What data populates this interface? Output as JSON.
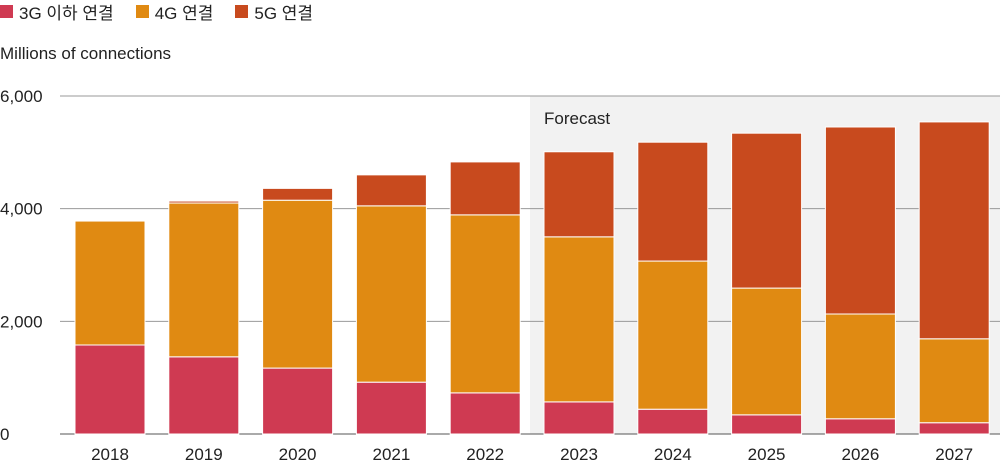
{
  "chart_data": {
    "type": "bar",
    "stacked": true,
    "ylabel": "Millions of connections",
    "ylim": [
      0,
      6000
    ],
    "yticks": [
      0,
      2000,
      4000,
      6000
    ],
    "ytick_labels": [
      "0",
      "2,000",
      "4,000",
      "6,000"
    ],
    "categories": [
      "2018",
      "2019",
      "2020",
      "2021",
      "2022",
      "2023",
      "2024",
      "2025",
      "2026",
      "2027"
    ],
    "annotation": "Forecast",
    "forecast_start": "2023",
    "series": [
      {
        "name": "3G 이하 연결",
        "color": "#cf3a52",
        "values": [
          1580,
          1370,
          1170,
          920,
          730,
          570,
          440,
          340,
          270,
          200
        ]
      },
      {
        "name": "4G 연결",
        "color": "#e08a12",
        "values": [
          2200,
          2730,
          2980,
          3130,
          3160,
          2930,
          2630,
          2250,
          1860,
          1490
        ]
      },
      {
        "name": "5G 연결",
        "color": "#c84a1e",
        "values": [
          0,
          35,
          210,
          550,
          940,
          1510,
          2110,
          2750,
          3320,
          3850
        ]
      }
    ]
  }
}
